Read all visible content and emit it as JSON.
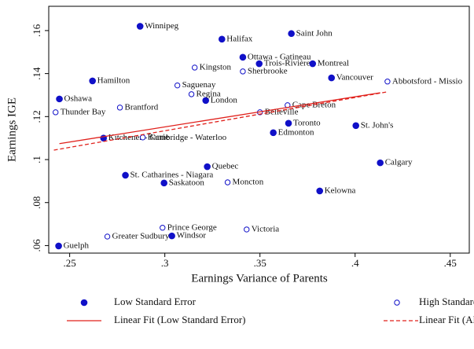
{
  "chart_data": {
    "type": "scatter",
    "xlabel": "Earnings Variance of Parents",
    "ylabel": "Earnings IGE",
    "xlim": [
      0.239,
      0.46
    ],
    "ylim": [
      0.0565,
      0.1713
    ],
    "xticks": [
      {
        "value": 0.25,
        "label": ".25"
      },
      {
        "value": 0.3,
        "label": ".3"
      },
      {
        "value": 0.35,
        "label": ".35"
      },
      {
        "value": 0.4,
        "label": ".4"
      },
      {
        "value": 0.45,
        "label": ".45"
      }
    ],
    "yticks": [
      {
        "value": 0.06,
        "label": ".06"
      },
      {
        "value": 0.08,
        "label": ".08"
      },
      {
        "value": 0.1,
        "label": ".1"
      },
      {
        "value": 0.12,
        "label": ".12"
      },
      {
        "value": 0.14,
        "label": ".14"
      },
      {
        "value": 0.16,
        "label": ".16"
      }
    ],
    "grid": false,
    "series": [
      {
        "name": "Low Standard Error",
        "kind": "points",
        "filled": true,
        "color": "#1010c8",
        "labels": [
          "Winnipeg",
          "Halifax",
          "Saint John",
          "Ottawa - Gatineau",
          "Trois-Rivières",
          "Montreal",
          "Hamilton",
          "Vancouver",
          "Oshawa",
          "London",
          "Toronto",
          "St. John's",
          "Edmonton",
          "Kitchener - Cambridge - Waterloo",
          "Calgary",
          "Quebec",
          "St. Catharines - Niagara",
          "Saskatoon",
          "Kelowna",
          "Windsor",
          "Guelph"
        ],
        "x": [
          0.287,
          0.33,
          0.3665,
          0.341,
          0.3496,
          0.3777,
          0.262,
          0.3876,
          0.2446,
          0.3215,
          0.365,
          0.4004,
          0.357,
          0.2678,
          0.4132,
          0.3223,
          0.2793,
          0.2996,
          0.3814,
          0.3037,
          0.2442
        ],
        "values": [
          0.162,
          0.156,
          0.1586,
          0.1476,
          0.1446,
          0.1446,
          0.1366,
          0.138,
          0.1282,
          0.1275,
          0.1169,
          0.1158,
          0.1125,
          0.11,
          0.0985,
          0.0967,
          0.0927,
          0.0891,
          0.0854,
          0.0645,
          0.0598
        ]
      },
      {
        "name": "High Standard Error",
        "kind": "points",
        "filled": false,
        "color": "#1010c8",
        "labels": [
          "Kingston",
          "Sherbrooke",
          "Abbotsford - Missio",
          "Saguenay",
          "Regina",
          "Brantford",
          "Thunder Bay",
          "Cape Breton",
          "Belleville",
          "Barrie",
          "Moncton",
          "Prince George",
          "Victoria",
          "Greater Sudbury"
        ],
        "x": [
          0.3157,
          0.341,
          0.417,
          0.3066,
          0.314,
          0.2764,
          0.2426,
          0.3645,
          0.35,
          0.2884,
          0.333,
          0.2988,
          0.343,
          0.2698
        ],
        "values": [
          0.1428,
          0.141,
          0.1363,
          0.1345,
          0.1304,
          0.1242,
          0.122,
          0.1253,
          0.122,
          0.1103,
          0.0894,
          0.0683,
          0.0675,
          0.0642
        ]
      },
      {
        "name": "Linear Fit (Low Standard Error)",
        "kind": "line",
        "dashed": false,
        "color": "#e0201b",
        "x": [
          0.2446,
          0.4132
        ],
        "values": [
          0.1074,
          0.1311
        ]
      },
      {
        "name": "Linear Fit (All)",
        "kind": "line",
        "dashed": true,
        "color": "#e0201b",
        "x": [
          0.2417,
          0.417
        ],
        "values": [
          0.1044,
          0.1315
        ]
      }
    ]
  }
}
